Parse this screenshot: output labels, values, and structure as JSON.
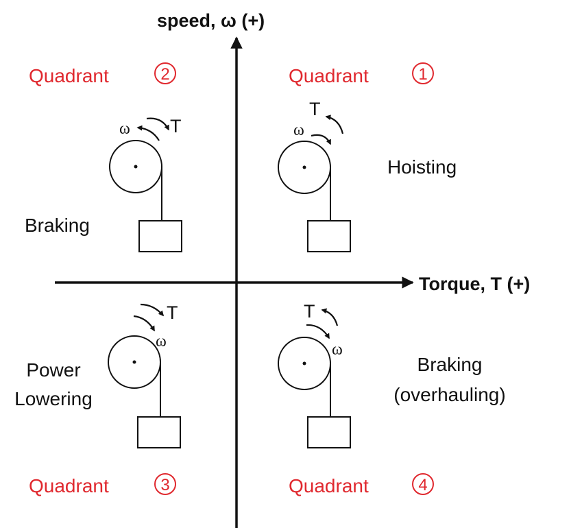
{
  "axes": {
    "y_label": "speed, ω (+)",
    "x_label": "Torque, T (+)"
  },
  "colors": {
    "quadrant_label": "#e0282e",
    "line": "#111111"
  },
  "quadrants": [
    {
      "word": "Quadrant",
      "number": "1",
      "mode": [
        "Hoisting"
      ],
      "speed_symbol": "ω",
      "torque_symbol": "T"
    },
    {
      "word": "Quadrant",
      "number": "2",
      "mode": [
        "Braking"
      ],
      "speed_symbol": "ω",
      "torque_symbol": "T"
    },
    {
      "word": "Quadrant",
      "number": "3",
      "mode": [
        "Power",
        "Lowering"
      ],
      "speed_symbol": "ω",
      "torque_symbol": "T"
    },
    {
      "word": "Quadrant",
      "number": "4",
      "mode": [
        "Braking",
        "(overhauling)"
      ],
      "speed_symbol": "ω",
      "torque_symbol": "T"
    }
  ]
}
